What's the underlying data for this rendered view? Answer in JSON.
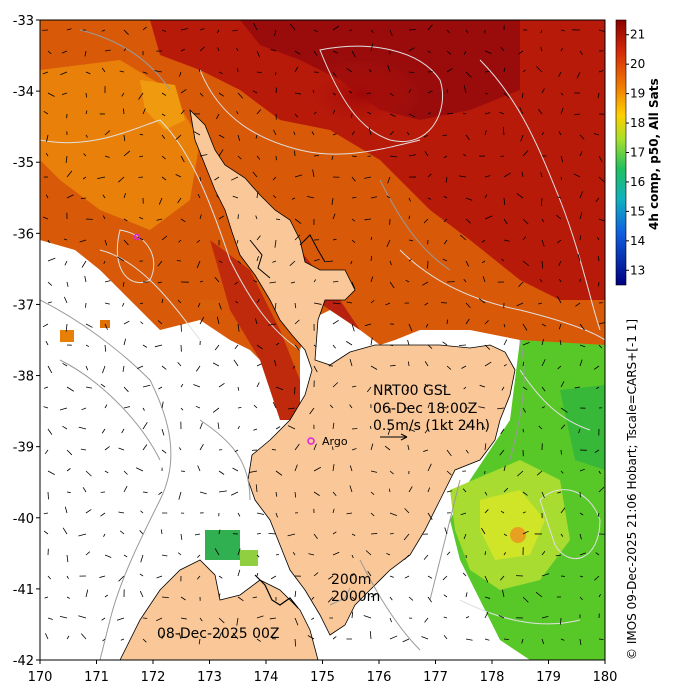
{
  "map": {
    "lon_range": [
      170,
      180
    ],
    "lat_range": [
      -42,
      -33
    ],
    "x_ticks": [
      "170",
      "171",
      "172",
      "173",
      "174",
      "175",
      "176",
      "177",
      "178",
      "179",
      "180"
    ],
    "y_ticks": [
      "-33",
      "-34",
      "-35",
      "-36",
      "-37",
      "-38",
      "-39",
      "-40",
      "-41",
      "-42"
    ],
    "colors": {
      "land": "#fac898",
      "warm": "#c83a0a",
      "hot": "#a81010",
      "mid": "#e06a08",
      "cool_green": "#3cc03c",
      "yellow_green": "#b8e030",
      "contour": "#d8d8d8",
      "isobath": "#a0a0a0"
    }
  },
  "colorbar": {
    "ticks": [
      "21",
      "20",
      "19",
      "18",
      "17",
      "16",
      "15",
      "14",
      "13"
    ],
    "label": "4h comp, p50, All Sats",
    "value_range": [
      12.5,
      21.5
    ]
  },
  "annotations": {
    "product": "NRT00 GSL",
    "datetime": "06-Dec 18:00Z",
    "scale": "0.5m/s (1kt 24h)",
    "argo": "Argo",
    "isobath_200": "200m",
    "isobath_2000": "2000m",
    "date_bottom": "08-Dec-2025 00Z",
    "credit": "© IMOS 09-Dec-2025 21:06 Hobart; Tscale=CARS+[-1 1]"
  }
}
